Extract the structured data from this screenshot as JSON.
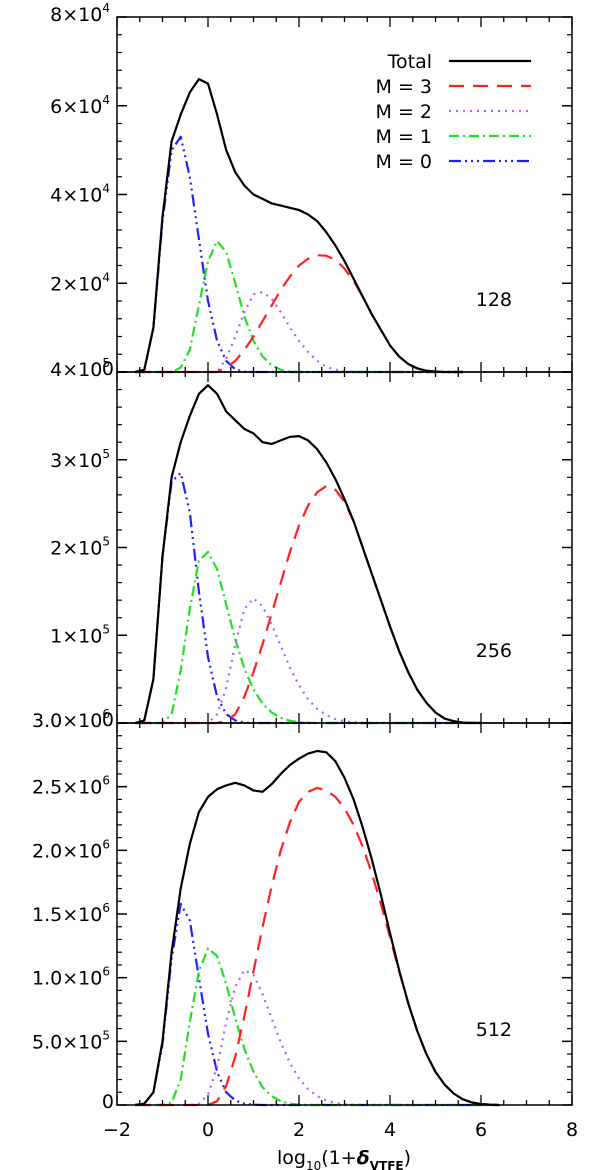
{
  "chart_data": [
    {
      "type": "line",
      "panel_label": "128",
      "xlim": [
        -2,
        8
      ],
      "ylim": [
        0,
        80000
      ],
      "y_ticks": [
        {
          "value": 0,
          "mantissa": "0",
          "exp": ""
        },
        {
          "value": 20000,
          "mantissa": "2×10",
          "exp": "4"
        },
        {
          "value": 40000,
          "mantissa": "4×10",
          "exp": "4"
        },
        {
          "value": 60000,
          "mantissa": "6×10",
          "exp": "4"
        },
        {
          "value": 80000,
          "mantissa": "8×10",
          "exp": "4"
        }
      ],
      "x": [
        -1.6,
        -1.4,
        -1.2,
        -1.0,
        -0.8,
        -0.6,
        -0.4,
        -0.2,
        0.0,
        0.2,
        0.4,
        0.6,
        0.8,
        1.0,
        1.2,
        1.4,
        1.6,
        1.8,
        2.0,
        2.2,
        2.4,
        2.6,
        2.8,
        3.0,
        3.2,
        3.4,
        3.6,
        3.8,
        4.0,
        4.2,
        4.4,
        4.6,
        4.8,
        5.0,
        5.2,
        5.4,
        5.6
      ],
      "series": [
        {
          "name": "Total",
          "values": [
            0,
            500,
            10000,
            35000,
            52000,
            58000,
            63000,
            66000,
            65000,
            58000,
            50000,
            45000,
            42000,
            40000,
            39000,
            38000,
            37500,
            37000,
            36500,
            35500,
            34000,
            31500,
            28500,
            25000,
            21000,
            17000,
            13000,
            9500,
            6000,
            3500,
            1800,
            800,
            300,
            100,
            0,
            0,
            0
          ]
        },
        {
          "name": "M = 3",
          "values": [
            0,
            0,
            0,
            0,
            0,
            0,
            0,
            0,
            0,
            0,
            1000,
            2500,
            5000,
            8000,
            11500,
            15000,
            18500,
            21500,
            24000,
            25500,
            26300,
            26200,
            25300,
            23300,
            20500,
            17000,
            13000,
            9500,
            6000,
            3500,
            1800,
            800,
            300,
            100,
            0,
            0,
            0
          ]
        },
        {
          "name": "M = 2",
          "values": [
            0,
            0,
            0,
            0,
            0,
            0,
            0,
            0,
            0,
            0,
            3000,
            8000,
            13500,
            17500,
            18000,
            16500,
            13500,
            10000,
            7000,
            4500,
            2500,
            1200,
            500,
            200,
            0,
            0,
            0,
            0,
            0,
            0,
            0,
            0,
            0,
            0,
            0,
            0,
            0
          ]
        },
        {
          "name": "M = 1",
          "values": [
            0,
            0,
            0,
            0,
            0,
            1000,
            5000,
            15000,
            25000,
            29500,
            27000,
            20000,
            12500,
            7000,
            3500,
            1500,
            500,
            100,
            0,
            0,
            0,
            0,
            0,
            0,
            0,
            0,
            0,
            0,
            0,
            0,
            0,
            0,
            0,
            0,
            0,
            0,
            0
          ]
        },
        {
          "name": "M = 0",
          "values": [
            0,
            500,
            10000,
            34000,
            50000,
            53000,
            44000,
            30000,
            16000,
            7000,
            2500,
            600,
            100,
            0,
            0,
            0,
            0,
            0,
            0,
            0,
            0,
            0,
            0,
            0,
            0,
            0,
            0,
            0,
            0,
            0,
            0,
            0,
            0,
            0,
            0,
            0,
            0
          ]
        }
      ]
    },
    {
      "type": "line",
      "panel_label": "256",
      "xlim": [
        -2,
        8
      ],
      "ylim": [
        0,
        400000
      ],
      "y_ticks": [
        {
          "value": 0,
          "mantissa": "0",
          "exp": ""
        },
        {
          "value": 100000,
          "mantissa": "1×10",
          "exp": "5"
        },
        {
          "value": 200000,
          "mantissa": "2×10",
          "exp": "5"
        },
        {
          "value": 300000,
          "mantissa": "3×10",
          "exp": "5"
        },
        {
          "value": 400000,
          "mantissa": "4×10",
          "exp": "5"
        }
      ],
      "x": [
        -1.6,
        -1.4,
        -1.2,
        -1.0,
        -0.8,
        -0.6,
        -0.4,
        -0.2,
        0.0,
        0.2,
        0.4,
        0.6,
        0.8,
        1.0,
        1.2,
        1.4,
        1.6,
        1.8,
        2.0,
        2.2,
        2.4,
        2.6,
        2.8,
        3.0,
        3.2,
        3.4,
        3.6,
        3.8,
        4.0,
        4.2,
        4.4,
        4.6,
        4.8,
        5.0,
        5.2,
        5.4,
        5.6,
        5.8,
        6.0
      ],
      "series": [
        {
          "name": "Total",
          "values": [
            0,
            3000,
            50000,
            190000,
            280000,
            320000,
            350000,
            375000,
            385000,
            375000,
            355000,
            345000,
            335000,
            330000,
            320000,
            318000,
            322000,
            326000,
            327000,
            322000,
            312000,
            297000,
            278000,
            255000,
            230000,
            200000,
            170000,
            140000,
            110000,
            82000,
            58000,
            38000,
            23000,
            12000,
            5000,
            2000,
            500,
            100,
            0
          ]
        },
        {
          "name": "M = 3",
          "values": [
            0,
            0,
            0,
            0,
            0,
            0,
            0,
            0,
            0,
            0,
            2000,
            10000,
            30000,
            58000,
            90000,
            125000,
            160000,
            195000,
            225000,
            248000,
            263000,
            270000,
            266000,
            252000,
            230000,
            200000,
            170000,
            140000,
            110000,
            82000,
            58000,
            38000,
            23000,
            12000,
            5000,
            2000,
            500,
            100,
            0
          ]
        },
        {
          "name": "M = 2",
          "values": [
            0,
            0,
            0,
            0,
            0,
            0,
            0,
            0,
            0,
            10000,
            40000,
            90000,
            130000,
            142000,
            133000,
            112000,
            88000,
            63000,
            43000,
            27000,
            16000,
            9000,
            4500,
            2000,
            800,
            200,
            0,
            0,
            0,
            0,
            0,
            0,
            0,
            0,
            0,
            0,
            0,
            0,
            0
          ]
        },
        {
          "name": "M = 1",
          "values": [
            0,
            0,
            0,
            0,
            10000,
            60000,
            130000,
            185000,
            195000,
            175000,
            135000,
            95000,
            62000,
            38000,
            22000,
            12000,
            6000,
            2500,
            1000,
            300,
            0,
            0,
            0,
            0,
            0,
            0,
            0,
            0,
            0,
            0,
            0,
            0,
            0,
            0,
            0,
            0,
            0,
            0,
            0
          ]
        },
        {
          "name": "M = 0",
          "values": [
            0,
            3000,
            50000,
            190000,
            275000,
            285000,
            240000,
            150000,
            75000,
            30000,
            10000,
            3000,
            500,
            0,
            0,
            0,
            0,
            0,
            0,
            0,
            0,
            0,
            0,
            0,
            0,
            0,
            0,
            0,
            0,
            0,
            0,
            0,
            0,
            0,
            0,
            0,
            0,
            0,
            0
          ]
        }
      ]
    },
    {
      "type": "line",
      "panel_label": "512",
      "xlim": [
        -2,
        8
      ],
      "ylim": [
        0,
        3000000
      ],
      "x_ticks": [
        "−2",
        "0",
        "2",
        "4",
        "6",
        "8"
      ],
      "xlabel_parts": [
        "log",
        "10",
        "(1+",
        "δ",
        "VTFE",
        ")"
      ],
      "y_ticks": [
        {
          "value": 0,
          "mantissa": "0",
          "exp": ""
        },
        {
          "value": 500000,
          "mantissa": "5.0×10",
          "exp": "5"
        },
        {
          "value": 1000000,
          "mantissa": "1.0×10",
          "exp": "6"
        },
        {
          "value": 1500000,
          "mantissa": "1.5×10",
          "exp": "6"
        },
        {
          "value": 2000000,
          "mantissa": "2.0×10",
          "exp": "6"
        },
        {
          "value": 2500000,
          "mantissa": "2.5×10",
          "exp": "6"
        },
        {
          "value": 3000000,
          "mantissa": "3.0×10",
          "exp": "6"
        }
      ],
      "x": [
        -1.6,
        -1.4,
        -1.2,
        -1.0,
        -0.8,
        -0.6,
        -0.4,
        -0.2,
        0.0,
        0.2,
        0.4,
        0.6,
        0.8,
        1.0,
        1.2,
        1.4,
        1.6,
        1.8,
        2.0,
        2.2,
        2.4,
        2.6,
        2.8,
        3.0,
        3.2,
        3.4,
        3.6,
        3.8,
        4.0,
        4.2,
        4.4,
        4.6,
        4.8,
        5.0,
        5.2,
        5.4,
        5.6,
        5.8,
        6.0,
        6.2,
        6.4
      ],
      "series": [
        {
          "name": "Total",
          "values": [
            0,
            10000,
            100000,
            500000,
            1200000,
            1700000,
            2050000,
            2300000,
            2420000,
            2480000,
            2510000,
            2530000,
            2510000,
            2470000,
            2460000,
            2520000,
            2600000,
            2670000,
            2720000,
            2760000,
            2780000,
            2770000,
            2700000,
            2570000,
            2400000,
            2180000,
            1930000,
            1650000,
            1350000,
            1060000,
            800000,
            580000,
            400000,
            260000,
            160000,
            90000,
            45000,
            20000,
            8000,
            2000,
            0
          ]
        },
        {
          "name": "M = 3",
          "values": [
            0,
            0,
            0,
            0,
            0,
            0,
            0,
            0,
            0,
            30000,
            150000,
            380000,
            700000,
            1050000,
            1400000,
            1720000,
            2000000,
            2220000,
            2380000,
            2460000,
            2490000,
            2470000,
            2420000,
            2330000,
            2200000,
            2030000,
            1820000,
            1580000,
            1320000,
            1050000,
            800000,
            580000,
            400000,
            260000,
            160000,
            90000,
            45000,
            20000,
            8000,
            2000,
            0
          ]
        },
        {
          "name": "M = 2",
          "values": [
            0,
            0,
            0,
            0,
            0,
            0,
            0,
            10000,
            80000,
            300000,
            650000,
            930000,
            1060000,
            1020000,
            870000,
            680000,
            490000,
            330000,
            210000,
            125000,
            70000,
            35000,
            15000,
            6000,
            2000,
            0,
            0,
            0,
            0,
            0,
            0,
            0,
            0,
            0,
            0,
            0,
            0,
            0,
            0,
            0,
            0
          ]
        },
        {
          "name": "M = 1",
          "values": [
            0,
            0,
            0,
            0,
            20000,
            200000,
            650000,
            1050000,
            1230000,
            1170000,
            950000,
            680000,
            440000,
            260000,
            140000,
            70000,
            30000,
            10000,
            3000,
            0,
            0,
            0,
            0,
            0,
            0,
            0,
            0,
            0,
            0,
            0,
            0,
            0,
            0,
            0,
            0,
            0,
            0,
            0,
            0,
            0,
            0
          ]
        },
        {
          "name": "M = 0",
          "values": [
            0,
            10000,
            100000,
            480000,
            1150000,
            1580000,
            1450000,
            1000000,
            560000,
            260000,
            100000,
            35000,
            10000,
            2000,
            0,
            0,
            0,
            0,
            0,
            0,
            0,
            0,
            0,
            0,
            0,
            0,
            0,
            0,
            0,
            0,
            0,
            0,
            0,
            0,
            0,
            0,
            0,
            0,
            0,
            0,
            0
          ]
        }
      ]
    }
  ],
  "legend": {
    "entries": [
      {
        "label": "Total",
        "color": "#000000",
        "dash": "solid"
      },
      {
        "label": "M = 3",
        "color": "#ff2020",
        "dash": "dashed"
      },
      {
        "label": "M = 2",
        "color": "#b060ff",
        "dash": "dotted"
      },
      {
        "label": "M = 1",
        "color": "#20e020",
        "dash": "dashdot"
      },
      {
        "label": "M = 0",
        "color": "#2020ff",
        "dash": "dashdotdotdot"
      }
    ]
  },
  "colors": {
    "Total": "#000000",
    "M = 3": "#ff2020",
    "M = 2": "#b060ff",
    "M = 1": "#20e020",
    "M = 0": "#2020ff"
  }
}
